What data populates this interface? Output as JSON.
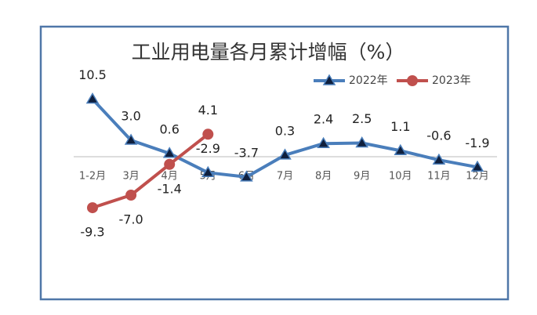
{
  "chart_data": {
    "type": "line",
    "title": "工业用电量各月累计增幅（%）",
    "categories": [
      "1-2月",
      "3月",
      "4月",
      "5月",
      "6月",
      "7月",
      "8月",
      "9月",
      "10月",
      "11月",
      "12月"
    ],
    "series": [
      {
        "name": "2022年",
        "color": "#4a7ebb",
        "marker": "triangle",
        "values": [
          10.5,
          3.0,
          0.6,
          -2.9,
          -3.7,
          0.3,
          2.4,
          2.5,
          1.1,
          -0.6,
          -1.9
        ],
        "value_labels": [
          "10.5",
          "3.0",
          "0.6",
          "-2.9",
          "-3.7",
          "0.3",
          "2.4",
          "2.5",
          "1.1",
          "-0.6",
          "-1.9"
        ]
      },
      {
        "name": "2023年",
        "color": "#c0504d",
        "marker": "circle",
        "values": [
          -9.3,
          -7.0,
          -1.4,
          4.1,
          null,
          null,
          null,
          null,
          null,
          null,
          null
        ],
        "value_labels": [
          "-9.3",
          "-7.0",
          "-1.4",
          "4.1",
          null,
          null,
          null,
          null,
          null,
          null,
          null
        ]
      }
    ],
    "ylim": [
      -12,
      14
    ]
  }
}
